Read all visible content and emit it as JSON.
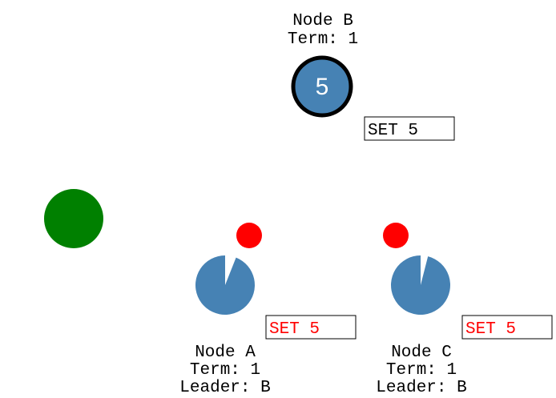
{
  "colors": {
    "node_fill": "#4682b4",
    "leader_ring": "#000000",
    "client": "#008000",
    "message": "#ff0000",
    "log_entry_committed": "#000000",
    "log_entry_uncommitted": "#ff0000",
    "text": "#000000"
  },
  "client": {
    "icon": "client-node-icon"
  },
  "nodes": [
    {
      "id": "B",
      "name": "Node B",
      "term": "Term: 1",
      "leader": "",
      "role": "leader",
      "value": "5",
      "log_entry": "SET 5",
      "log_committed": true,
      "election_timeout_remaining": 1.0,
      "pending_message": false
    },
    {
      "id": "A",
      "name": "Node A",
      "term": "Term: 1",
      "leader": "Leader: B",
      "role": "follower",
      "value": "",
      "log_entry": "SET 5",
      "log_committed": false,
      "election_timeout_remaining": 0.94,
      "pending_message": true
    },
    {
      "id": "C",
      "name": "Node C",
      "term": "Term: 1",
      "leader": "Leader: B",
      "role": "follower",
      "value": "",
      "log_entry": "SET 5",
      "log_committed": false,
      "election_timeout_remaining": 0.96,
      "pending_message": true
    }
  ]
}
